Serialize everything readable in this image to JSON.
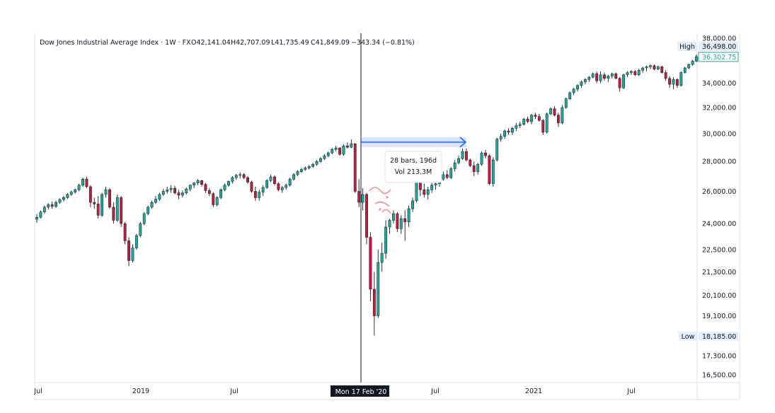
{
  "header": {
    "title": "Dow Jones Industrial Average Index · 1W · FX",
    "open": "O42,141.04",
    "high": "H42,707.09",
    "low": "L41,735.49",
    "close": "C41,849.09",
    "change": "−343.34 (−0.81%)"
  },
  "chart_data": {
    "type": "candlestick",
    "price_axis": {
      "scale": "log",
      "tick_labels": [
        "38,000.00",
        "34,000.00",
        "32,000.00",
        "30,000.00",
        "28,000.00",
        "26,000.00",
        "24,000.00",
        "22,500.00",
        "21,300.00",
        "20,100.00",
        "19,100.00",
        "17,300.00",
        "16,500.00"
      ],
      "ticks": [
        38000,
        34000,
        32000,
        30000,
        28000,
        26000,
        24000,
        22500,
        21300,
        20100,
        19100,
        17300,
        16500
      ]
    },
    "time_axis": {
      "labels": [
        "Jul",
        "2019",
        "Jul",
        "Jul",
        "2021",
        "Jul"
      ]
    },
    "high_marker": {
      "label": "High",
      "value": "36,498.00"
    },
    "low_marker": {
      "label": "Low",
      "value": "18,185.00"
    },
    "last_price": {
      "value": "36,302.75",
      "color": "#26a69a"
    },
    "crosshair_label": "Mon 17 Feb '20",
    "measure": {
      "line1": "28 bars, 196d",
      "line2": "Vol 213.3M"
    },
    "colors": {
      "up": "#26a69a",
      "down": "#b2253f",
      "measure": "#2962ff"
    },
    "series": [
      [
        24260,
        24560,
        24050,
        24380
      ],
      [
        24380,
        24800,
        24300,
        24700
      ],
      [
        24700,
        25100,
        24600,
        25000
      ],
      [
        25000,
        25250,
        24850,
        25150
      ],
      [
        25150,
        25350,
        24900,
        25050
      ],
      [
        25050,
        25400,
        24950,
        25300
      ],
      [
        25300,
        25550,
        25200,
        25480
      ],
      [
        25480,
        25700,
        25350,
        25600
      ],
      [
        25600,
        25900,
        25500,
        25800
      ],
      [
        25800,
        26050,
        25700,
        25950
      ],
      [
        25950,
        26200,
        25850,
        26100
      ],
      [
        26100,
        26500,
        26000,
        26400
      ],
      [
        26400,
        26900,
        26300,
        26800
      ],
      [
        26800,
        26950,
        26200,
        26300
      ],
      [
        26300,
        26400,
        25000,
        25300
      ],
      [
        25300,
        25600,
        24900,
        25200
      ],
      [
        25200,
        25700,
        24300,
        24500
      ],
      [
        24500,
        25900,
        24400,
        25800
      ],
      [
        25800,
        26300,
        25600,
        26100
      ],
      [
        26100,
        26200,
        24900,
        25000
      ],
      [
        25000,
        25300,
        24000,
        24200
      ],
      [
        24200,
        25800,
        24100,
        25600
      ],
      [
        25600,
        25700,
        23800,
        24000
      ],
      [
        24000,
        24100,
        22800,
        23000
      ],
      [
        23000,
        23200,
        21600,
        21900
      ],
      [
        21900,
        22800,
        21800,
        22600
      ],
      [
        22600,
        23400,
        22500,
        23300
      ],
      [
        23300,
        24100,
        23200,
        24000
      ],
      [
        24000,
        24700,
        23900,
        24600
      ],
      [
        24600,
        25100,
        24500,
        25000
      ],
      [
        25000,
        25400,
        24900,
        25300
      ],
      [
        25300,
        25700,
        25200,
        25500
      ],
      [
        25500,
        25900,
        25400,
        25800
      ],
      [
        25800,
        26150,
        25700,
        26000
      ],
      [
        26000,
        26300,
        25850,
        26100
      ],
      [
        26100,
        26400,
        25900,
        26200
      ],
      [
        26200,
        26350,
        25800,
        25900
      ],
      [
        25900,
        26100,
        25500,
        25750
      ],
      [
        25750,
        26050,
        25600,
        25900
      ],
      [
        25900,
        26250,
        25800,
        26150
      ],
      [
        26150,
        26450,
        26000,
        26400
      ],
      [
        26400,
        26600,
        26200,
        26550
      ],
      [
        26550,
        26800,
        26400,
        26700
      ],
      [
        26700,
        26750,
        26300,
        26450
      ],
      [
        26450,
        26550,
        25900,
        26050
      ],
      [
        26050,
        26200,
        25700,
        25850
      ],
      [
        25850,
        25950,
        25000,
        25150
      ],
      [
        25150,
        25700,
        25050,
        25600
      ],
      [
        25600,
        26200,
        25500,
        26100
      ],
      [
        26100,
        26500,
        26000,
        26400
      ],
      [
        26400,
        26700,
        26300,
        26650
      ],
      [
        26650,
        27000,
        26500,
        26900
      ],
      [
        26900,
        27150,
        26750,
        27050
      ],
      [
        27050,
        27250,
        26850,
        27100
      ],
      [
        27100,
        27200,
        26800,
        26900
      ],
      [
        26900,
        27000,
        26500,
        26600
      ],
      [
        26600,
        26700,
        25900,
        26000
      ],
      [
        26000,
        26300,
        25400,
        25600
      ],
      [
        25600,
        26100,
        25400,
        25950
      ],
      [
        25950,
        26400,
        25700,
        26250
      ],
      [
        26250,
        26800,
        26150,
        26700
      ],
      [
        26700,
        27100,
        26600,
        26950
      ],
      [
        26950,
        27050,
        26400,
        26500
      ],
      [
        26500,
        26600,
        26000,
        26100
      ],
      [
        26100,
        26350,
        25900,
        26250
      ],
      [
        26250,
        26500,
        26100,
        26400
      ],
      [
        26400,
        26900,
        26300,
        26800
      ],
      [
        26800,
        27200,
        26700,
        27100
      ],
      [
        27100,
        27400,
        27000,
        27300
      ],
      [
        27300,
        27550,
        27200,
        27450
      ],
      [
        27450,
        27650,
        27350,
        27550
      ],
      [
        27550,
        27750,
        27450,
        27650
      ],
      [
        27650,
        27900,
        27550,
        27800
      ],
      [
        27800,
        28100,
        27700,
        28000
      ],
      [
        28000,
        28300,
        27900,
        28200
      ],
      [
        28200,
        28500,
        28100,
        28400
      ],
      [
        28400,
        28700,
        28300,
        28600
      ],
      [
        28600,
        28950,
        28500,
        28850
      ],
      [
        28850,
        29100,
        28700,
        28950
      ],
      [
        28950,
        29000,
        28400,
        28500
      ],
      [
        28500,
        29200,
        28400,
        29100
      ],
      [
        29100,
        29350,
        28900,
        29000
      ],
      [
        29000,
        29570,
        28950,
        29250
      ],
      [
        29250,
        29300,
        25900,
        26000
      ],
      [
        26000,
        26800,
        25000,
        25300
      ],
      [
        25300,
        26200,
        24800,
        25800
      ],
      [
        25800,
        25900,
        22800,
        23200
      ],
      [
        23200,
        23500,
        19800,
        20400
      ],
      [
        20400,
        21300,
        18185,
        19100
      ],
      [
        19100,
        22500,
        19000,
        21800
      ],
      [
        21800,
        22900,
        21300,
        22300
      ],
      [
        22300,
        24200,
        22000,
        23800
      ],
      [
        23800,
        24300,
        23400,
        24200
      ],
      [
        24200,
        24800,
        24000,
        24600
      ],
      [
        24600,
        24700,
        23500,
        23700
      ],
      [
        23700,
        24500,
        23400,
        24300
      ],
      [
        24300,
        24800,
        23000,
        24100
      ],
      [
        24100,
        25100,
        23800,
        24900
      ],
      [
        24900,
        25600,
        24700,
        25400
      ],
      [
        25400,
        27400,
        25300,
        27200
      ],
      [
        27200,
        27500,
        25700,
        26100
      ],
      [
        26100,
        26500,
        25600,
        25800
      ],
      [
        25800,
        26300,
        25500,
        26100
      ],
      [
        26100,
        26600,
        25900,
        26400
      ],
      [
        26400,
        26700,
        26100,
        26500
      ],
      [
        26500,
        27000,
        26300,
        26800
      ],
      [
        26800,
        27300,
        26700,
        27100
      ],
      [
        27100,
        27400,
        26800,
        26900
      ],
      [
        26900,
        27600,
        26800,
        27500
      ],
      [
        27500,
        28100,
        27300,
        27900
      ],
      [
        27900,
        28400,
        27800,
        28200
      ],
      [
        28200,
        28900,
        28100,
        28700
      ],
      [
        28700,
        28900,
        28000,
        28100
      ],
      [
        28100,
        28200,
        27600,
        27700
      ],
      [
        27700,
        28000,
        27000,
        27300
      ],
      [
        27300,
        27900,
        27100,
        27800
      ],
      [
        27800,
        28700,
        27700,
        28600
      ],
      [
        28600,
        28800,
        28200,
        28400
      ],
      [
        28400,
        28500,
        26400,
        26500
      ],
      [
        26500,
        28300,
        26300,
        28100
      ],
      [
        28100,
        29700,
        28000,
        29600
      ],
      [
        29600,
        30000,
        29400,
        29800
      ],
      [
        29800,
        30300,
        29600,
        30200
      ],
      [
        30200,
        30400,
        29900,
        30100
      ],
      [
        30100,
        30500,
        29900,
        30400
      ],
      [
        30400,
        30800,
        30200,
        30600
      ],
      [
        30600,
        30900,
        30400,
        30700
      ],
      [
        30700,
        31200,
        30600,
        31100
      ],
      [
        31100,
        31300,
        30800,
        30900
      ],
      [
        30900,
        31500,
        30700,
        31400
      ],
      [
        31400,
        31600,
        31100,
        31300
      ],
      [
        31300,
        31500,
        30900,
        31000
      ],
      [
        31000,
        31100,
        29900,
        30100
      ],
      [
        30100,
        31600,
        30000,
        31500
      ],
      [
        31500,
        32000,
        31400,
        31900
      ],
      [
        31900,
        32100,
        31300,
        31400
      ],
      [
        31400,
        31600,
        30500,
        30800
      ],
      [
        30800,
        32200,
        30700,
        32000
      ],
      [
        32000,
        32800,
        31900,
        32700
      ],
      [
        32700,
        33300,
        32600,
        33200
      ],
      [
        33200,
        33600,
        33000,
        33500
      ],
      [
        33500,
        33900,
        33300,
        33800
      ],
      [
        33800,
        34200,
        33600,
        34100
      ],
      [
        34100,
        34400,
        33900,
        34300
      ],
      [
        34300,
        34600,
        34100,
        34500
      ],
      [
        34500,
        34900,
        34400,
        34800
      ],
      [
        34800,
        35000,
        34000,
        34200
      ],
      [
        34200,
        35000,
        34000,
        34700
      ],
      [
        34700,
        34900,
        34200,
        34400
      ],
      [
        34400,
        34700,
        34100,
        34600
      ],
      [
        34600,
        34900,
        34400,
        34800
      ],
      [
        34800,
        34900,
        34300,
        34400
      ],
      [
        34400,
        34500,
        33300,
        33600
      ],
      [
        33600,
        34800,
        33500,
        34700
      ],
      [
        34700,
        35000,
        34500,
        34900
      ],
      [
        34900,
        35100,
        34700,
        35000
      ],
      [
        35000,
        35100,
        34600,
        34700
      ],
      [
        34700,
        35200,
        34600,
        35100
      ],
      [
        35100,
        35400,
        34900,
        35300
      ],
      [
        35300,
        35500,
        35000,
        35400
      ],
      [
        35400,
        35600,
        35200,
        35500
      ],
      [
        35500,
        35600,
        35100,
        35200
      ],
      [
        35200,
        35500,
        35100,
        35400
      ],
      [
        35400,
        35500,
        34800,
        34900
      ],
      [
        34900,
        35100,
        34200,
        34400
      ],
      [
        34400,
        34600,
        33600,
        33900
      ],
      [
        33900,
        34500,
        33500,
        34300
      ],
      [
        34300,
        34400,
        33600,
        33800
      ],
      [
        33800,
        35000,
        33700,
        34900
      ],
      [
        34900,
        35400,
        34800,
        35300
      ],
      [
        35300,
        35700,
        35200,
        35600
      ],
      [
        35600,
        36000,
        35500,
        35900
      ],
      [
        35900,
        36498,
        35800,
        36302.75
      ]
    ]
  }
}
